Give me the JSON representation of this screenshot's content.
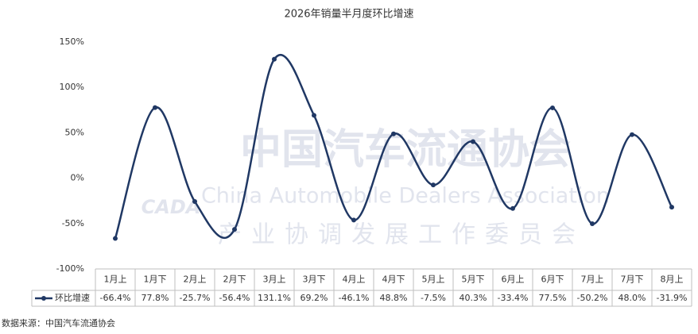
{
  "chart_data": {
    "type": "line",
    "title": "2026年销量半月度环比增速",
    "categories": [
      "1月上",
      "1月下",
      "2月上",
      "2月下",
      "3月上",
      "3月下",
      "4月上",
      "4月下",
      "5月上",
      "5月下",
      "6月上",
      "6月下",
      "7月上",
      "7月下",
      "8月上"
    ],
    "series": [
      {
        "name": "环比增速",
        "color": "#203864",
        "values": [
          -66.4,
          77.8,
          -25.7,
          -56.4,
          131.1,
          69.2,
          -46.1,
          48.8,
          -7.5,
          40.3,
          -33.4,
          77.5,
          -50.2,
          48.0,
          -31.9
        ],
        "value_labels": [
          "-66.4%",
          "77.8%",
          "-25.7%",
          "-56.4%",
          "131.1%",
          "69.2%",
          "-46.1%",
          "48.8%",
          "-7.5%",
          "40.3%",
          "-33.4%",
          "77.5%",
          "-50.2%",
          "48.0%",
          "-31.9%"
        ]
      }
    ],
    "ylim": [
      -100,
      150
    ],
    "yticks": [
      {
        "value": -100,
        "label": "-100%"
      },
      {
        "value": -50,
        "label": "-50%"
      },
      {
        "value": 0,
        "label": "0%"
      },
      {
        "value": 50,
        "label": "50%"
      },
      {
        "value": 100,
        "label": "100%"
      },
      {
        "value": 150,
        "label": "150%"
      }
    ],
    "grid": false,
    "smooth": true,
    "source": "数据来源：中国汽车流通协会",
    "watermark": {
      "logo": "CADA",
      "name": "中国汽车流通协会",
      "english": "China Automobile Dealers Association",
      "committee": "产业协调发展工作委员会"
    }
  }
}
